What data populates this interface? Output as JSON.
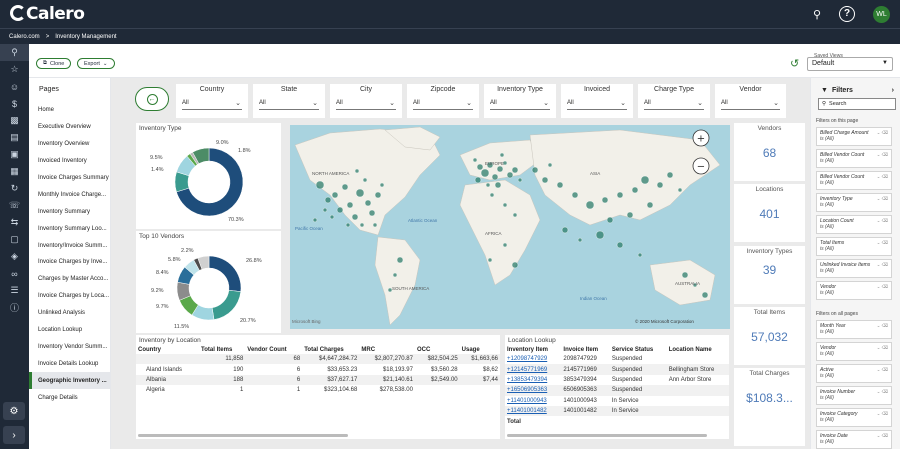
{
  "app": {
    "logo": "Calero",
    "user_initials": "WL"
  },
  "breadcrumb": {
    "root": "Calero.com",
    "sep": ">",
    "current": "Inventory Management"
  },
  "toolbar": {
    "clone": "Clone",
    "export": "Export",
    "saved_views_label": "Saved Views",
    "saved_views_value": "Default"
  },
  "pages": {
    "title": "Pages",
    "items": [
      "Home",
      "Executive Overview",
      "Inventory Overview",
      "Invoiced Inventory",
      "Invoice Charges Summary",
      "Monthly Invoice Charge...",
      "Inventory Summary",
      "Inventory Summary Loo...",
      "Inventory/Invoice Summ...",
      "Invoice Charges by Inve...",
      "Charges by Master Acco...",
      "Invoice Charges by Loca...",
      "Unlinked Analysis",
      "Location Lookup",
      "Inventory Vendor Summ...",
      "Invoice Details Lookup",
      "Geographic Inventory ...",
      "Charge Details"
    ],
    "active_index": 16
  },
  "slicers": [
    {
      "label": "Country",
      "value": "All"
    },
    {
      "label": "State",
      "value": "All"
    },
    {
      "label": "City",
      "value": "All"
    },
    {
      "label": "Zipcode",
      "value": "All"
    },
    {
      "label": "Inventory Type",
      "value": "All"
    },
    {
      "label": "Invoiced",
      "value": "All"
    },
    {
      "label": "Charge Type",
      "value": "All"
    },
    {
      "label": "Vendor",
      "value": "All"
    }
  ],
  "inventory_type": {
    "title": "Inventory Type",
    "labels": [
      "9.5%",
      "9.0%",
      "1.8%",
      "1.4%",
      "70.3%"
    ],
    "slices": [
      70.3,
      9.5,
      9.0,
      1.8,
      1.4,
      8.0
    ],
    "colors": [
      "#1e4d7b",
      "#3a9b8f",
      "#9fd5e0",
      "#5aa84a",
      "#b8b8b8",
      "#4c8c66"
    ]
  },
  "top_vendors": {
    "title": "Top 10 Vendors",
    "labels": [
      "2.2%",
      "5.8%",
      "8.4%",
      "9.2%",
      "9.7%",
      "11.5%",
      "20.7%",
      "26.8%"
    ],
    "slices": [
      26.8,
      20.7,
      11.5,
      9.7,
      9.2,
      8.4,
      5.8,
      2.2,
      5.7
    ],
    "colors": [
      "#1e4d7b",
      "#3a9b8f",
      "#9fd5e0",
      "#5aa84a",
      "#8c8c8c",
      "#2a6e9a",
      "#bfe3ea",
      "#4d4d4d",
      "#d0d0d0"
    ]
  },
  "map": {
    "labels": {
      "north_america": "NORTH AMERICA",
      "europe": "EUROPE",
      "asia": "ASIA",
      "africa": "AFRICA",
      "south_america": "SOUTH AMERICA",
      "australia": "AUSTRALIA",
      "atlantic": "Atlantic Ocean",
      "pacific": "Pacific Ocean",
      "indian": "Indian Ocean"
    },
    "attribution": "© 2020 Microsoft Corporation",
    "bing": "Microsoft Bing",
    "zoom_in": "+",
    "zoom_out": "−"
  },
  "kpis": [
    {
      "title": "Vendors",
      "value": "68"
    },
    {
      "title": "Locations",
      "value": "401"
    },
    {
      "title": "Inventory Types",
      "value": "39"
    },
    {
      "title": "Total Items",
      "value": "57,032"
    },
    {
      "title": "Total Charges",
      "value": "$108.3..."
    }
  ],
  "inv_by_location": {
    "title": "Inventory by Location",
    "headers": [
      "Country",
      "Total Items",
      "Vendor Count",
      "Total Charges",
      "MRC",
      "OCC",
      "Usage"
    ],
    "rows": [
      [
        "",
        "11,858",
        "68",
        "$4,647,284.72",
        "$2,807,270.87",
        "$82,504.25",
        "$1,663,66"
      ],
      [
        "Aland Islands",
        "190",
        "6",
        "$33,653.23",
        "$18,193.97",
        "$3,560.28",
        "$8,62"
      ],
      [
        "Albania",
        "188",
        "6",
        "$37,627.17",
        "$21,140.61",
        "$2,549.00",
        "$7,44"
      ],
      [
        "Algeria",
        "1",
        "1",
        "$323,104.68",
        "$278,538.00",
        "",
        ""
      ]
    ]
  },
  "location_lookup": {
    "title": "Location Lookup",
    "headers": [
      "Inventory Item",
      "Invoice Item",
      "Service Status",
      "Location Name"
    ],
    "rows": [
      [
        "+12098747929",
        "2098747929",
        "Suspended",
        ""
      ],
      [
        "+12145771969",
        "2145771969",
        "Suspended",
        "Bellingham Store"
      ],
      [
        "+13853479394",
        "3853479394",
        "Suspended",
        "Ann Arbor Store"
      ],
      [
        "+16506905363",
        "6506905363",
        "Suspended",
        ""
      ],
      [
        "+11401000943",
        "1401000943",
        "In Service",
        ""
      ],
      [
        "+11401001482",
        "1401001482",
        "In Service",
        ""
      ]
    ],
    "total_label": "Total"
  },
  "filters": {
    "title": "Filters",
    "search_placeholder": "Search",
    "on_page_label": "Filters on this page",
    "on_all_label": "Filters on all pages",
    "on_page": [
      {
        "name": "Billed Charge Amount",
        "value": "is (All)"
      },
      {
        "name": "Billed Vendor Count",
        "value": "is (All)"
      },
      {
        "name": "Billed Vendor Count",
        "value": "is (All)"
      },
      {
        "name": "Inventory Type",
        "value": "is (All)"
      },
      {
        "name": "Location Count",
        "value": "is (All)"
      },
      {
        "name": "Total Items",
        "value": "is (All)"
      },
      {
        "name": "Unlinked Invoice Items",
        "value": "is (All)"
      },
      {
        "name": "Vendor",
        "value": "is (All)"
      }
    ],
    "on_all": [
      {
        "name": "Month Year",
        "value": "is (All)"
      },
      {
        "name": "Vendor",
        "value": "is (All)"
      },
      {
        "name": "Active",
        "value": "is (All)"
      },
      {
        "name": "Invoice Number",
        "value": "is (All)"
      },
      {
        "name": "Invoice Category",
        "value": "is (All)"
      },
      {
        "name": "Invoice Date",
        "value": "is (All)"
      }
    ]
  }
}
